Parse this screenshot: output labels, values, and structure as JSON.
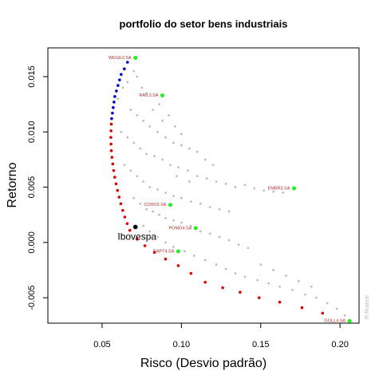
{
  "chart_data": {
    "type": "scatter",
    "title": "portfolio do setor bens industriais",
    "xlabel": "Risco (Desvio padrão)",
    "ylabel": "Retorno",
    "watermark": "R-finance",
    "xlim": [
      0.0158,
      0.212
    ],
    "ylim": [
      -0.0073,
      0.0176
    ],
    "xticks": [
      0.05,
      {
        "value": 0.1,
        "label": "0.10"
      },
      0.15,
      {
        "value": 0.2,
        "label": "0.20"
      }
    ],
    "yticks": [
      -0.005,
      {
        "value": 0,
        "label": "0.000"
      },
      0.005,
      {
        "value": 0.01,
        "label": "0.010"
      },
      0.015
    ],
    "series": [
      {
        "color": "#bebebe",
        "points": [
          [
            0.06,
            0.013
          ],
          [
            0.063,
            0.014
          ],
          [
            0.066,
            0.0145
          ],
          [
            0.07,
            0.0155
          ],
          [
            0.072,
            0.015
          ],
          [
            0.075,
            0.014
          ],
          [
            0.078,
            0.0135
          ],
          [
            0.082,
            0.012
          ],
          [
            0.086,
            0.0125
          ],
          [
            0.068,
            0.012
          ],
          [
            0.072,
            0.0115
          ],
          [
            0.076,
            0.011
          ],
          [
            0.08,
            0.0105
          ],
          [
            0.085,
            0.01
          ],
          [
            0.09,
            0.0095
          ],
          [
            0.095,
            0.009
          ],
          [
            0.1,
            0.0088
          ],
          [
            0.105,
            0.0085
          ],
          [
            0.11,
            0.0082
          ],
          [
            0.062,
            0.01
          ],
          [
            0.066,
            0.0095
          ],
          [
            0.07,
            0.009
          ],
          [
            0.074,
            0.0085
          ],
          [
            0.078,
            0.008
          ],
          [
            0.083,
            0.0078
          ],
          [
            0.088,
            0.0075
          ],
          [
            0.093,
            0.007
          ],
          [
            0.098,
            0.0068
          ],
          [
            0.104,
            0.0065
          ],
          [
            0.11,
            0.006
          ],
          [
            0.116,
            0.0058
          ],
          [
            0.122,
            0.0055
          ],
          [
            0.128,
            0.0053
          ],
          [
            0.134,
            0.005
          ],
          [
            0.14,
            0.0052
          ],
          [
            0.146,
            0.0049
          ],
          [
            0.152,
            0.0047
          ],
          [
            0.158,
            0.0046
          ],
          [
            0.164,
            0.0045
          ],
          [
            0.064,
            0.007
          ],
          [
            0.068,
            0.0065
          ],
          [
            0.072,
            0.006
          ],
          [
            0.076,
            0.0055
          ],
          [
            0.08,
            0.005
          ],
          [
            0.085,
            0.0048
          ],
          [
            0.09,
            0.0045
          ],
          [
            0.095,
            0.0042
          ],
          [
            0.1,
            0.004
          ],
          [
            0.106,
            0.0037
          ],
          [
            0.112,
            0.0035
          ],
          [
            0.118,
            0.0032
          ],
          [
            0.124,
            0.003
          ],
          [
            0.13,
            0.0028
          ],
          [
            0.07,
            0.004
          ],
          [
            0.074,
            0.0035
          ],
          [
            0.078,
            0.003
          ],
          [
            0.082,
            0.0028
          ],
          [
            0.086,
            0.0025
          ],
          [
            0.09,
            0.0022
          ],
          [
            0.095,
            0.002
          ],
          [
            0.1,
            0.0018
          ],
          [
            0.106,
            0.0015
          ],
          [
            0.112,
            0.001
          ],
          [
            0.118,
            0.0008
          ],
          [
            0.124,
            0.0005
          ],
          [
            0.13,
            0.0002
          ],
          [
            0.136,
            -0.0002
          ],
          [
            0.142,
            -0.0005
          ],
          [
            0.076,
            0.0015
          ],
          [
            0.08,
            0.001
          ],
          [
            0.085,
            0.0005
          ],
          [
            0.09,
            0.0
          ],
          [
            0.095,
            -0.0004
          ],
          [
            0.102,
            -0.0008
          ],
          [
            0.108,
            -0.0012
          ],
          [
            0.115,
            -0.0016
          ],
          [
            0.122,
            -0.002
          ],
          [
            0.128,
            -0.0024
          ],
          [
            0.134,
            -0.0028
          ],
          [
            0.14,
            -0.0031
          ],
          [
            0.148,
            -0.0034
          ],
          [
            0.155,
            -0.0037
          ],
          [
            0.162,
            -0.004
          ],
          [
            0.17,
            -0.0043
          ],
          [
            0.178,
            -0.0047
          ],
          [
            0.185,
            -0.005
          ],
          [
            0.192,
            -0.0055
          ],
          [
            0.198,
            -0.006
          ],
          [
            0.203,
            -0.0066
          ],
          [
            0.15,
            -0.002
          ],
          [
            0.158,
            -0.0025
          ],
          [
            0.166,
            -0.003
          ],
          [
            0.174,
            -0.0035
          ],
          [
            0.182,
            -0.004
          ],
          [
            0.088,
            0.011
          ],
          [
            0.092,
            0.0115
          ],
          [
            0.096,
            0.0105
          ],
          [
            0.1,
            0.0098
          ],
          [
            0.115,
            0.0075
          ],
          [
            0.12,
            0.007
          ],
          [
            0.097,
            0.006
          ],
          [
            0.105,
            0.0055
          ]
        ]
      },
      {
        "color": "#0000cd",
        "points": [
          [
            0.066,
            0.0163
          ],
          [
            0.064,
            0.0157
          ],
          [
            0.062,
            0.0152
          ],
          [
            0.061,
            0.0147
          ],
          [
            0.06,
            0.0142
          ],
          [
            0.059,
            0.0137
          ],
          [
            0.058,
            0.0132
          ],
          [
            0.0575,
            0.0127
          ],
          [
            0.057,
            0.0122
          ],
          [
            0.0565,
            0.0117
          ],
          [
            0.056,
            0.0112
          ]
        ]
      },
      {
        "color": "#dd0000",
        "points": [
          [
            0.0558,
            0.0107
          ],
          [
            0.0556,
            0.0101
          ],
          [
            0.0555,
            0.0095
          ],
          [
            0.0556,
            0.0089
          ],
          [
            0.0558,
            0.0083
          ],
          [
            0.0562,
            0.0077
          ],
          [
            0.0567,
            0.0071
          ],
          [
            0.0573,
            0.0065
          ],
          [
            0.058,
            0.0059
          ],
          [
            0.0588,
            0.0053
          ],
          [
            0.0597,
            0.0047
          ],
          [
            0.0607,
            0.0041
          ],
          [
            0.0618,
            0.0035
          ],
          [
            0.063,
            0.0029
          ],
          [
            0.0643,
            0.0023
          ],
          [
            0.0658,
            0.0017
          ],
          [
            0.0675,
            0.0011
          ],
          [
            0.072,
            0.0003
          ],
          [
            0.077,
            -0.0003
          ],
          [
            0.083,
            -0.0009
          ],
          [
            0.09,
            -0.0015
          ],
          [
            0.098,
            -0.0021
          ],
          [
            0.106,
            -0.0028
          ],
          [
            0.115,
            -0.0036
          ],
          [
            0.126,
            -0.0041
          ],
          [
            0.137,
            -0.0045
          ],
          [
            0.149,
            -0.005
          ],
          [
            0.162,
            -0.0054
          ],
          [
            0.176,
            -0.0059
          ],
          [
            0.189,
            -0.0064
          ]
        ]
      }
    ],
    "assets_color": "#22ee22",
    "asset_label_color": "#b03030",
    "assets": [
      {
        "label": "WEGE3.SA",
        "x": 0.071,
        "y": 0.0167
      },
      {
        "label": "RAIL3.SA",
        "x": 0.088,
        "y": 0.0133
      },
      {
        "label": "EMBR3.SA",
        "x": 0.171,
        "y": 0.0049
      },
      {
        "label": "CCRO3.SA",
        "x": 0.093,
        "y": 0.0034
      },
      {
        "label": "POMO4.SA",
        "x": 0.109,
        "y": 0.0013
      },
      {
        "label": "RAPT4.SA",
        "x": 0.098,
        "y": -0.0008
      },
      {
        "label": "GOLL4.SA",
        "x": 0.206,
        "y": -0.0071
      }
    ],
    "benchmark": {
      "label": "Ibovespa",
      "x": 0.071,
      "y": 0.0014,
      "color": "#000000"
    }
  }
}
